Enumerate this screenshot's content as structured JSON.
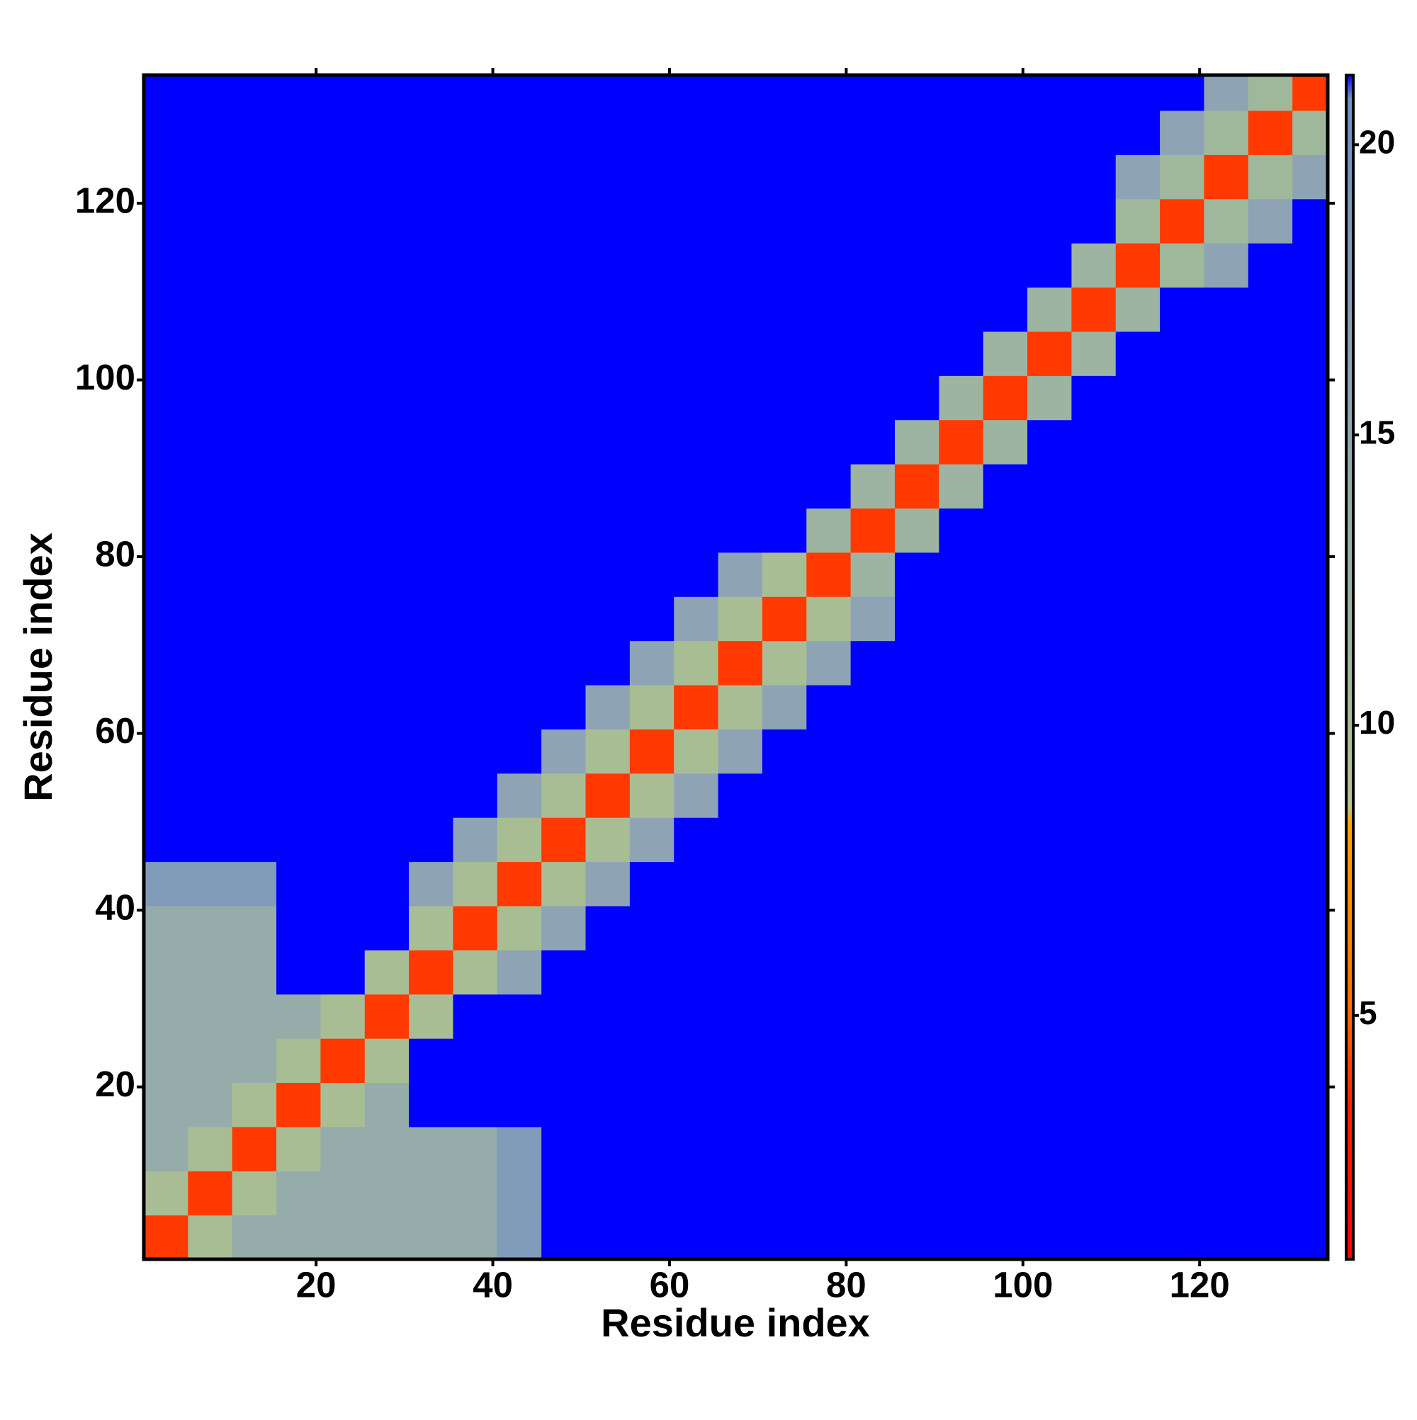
{
  "chart_data": {
    "type": "heatmap",
    "x_label": "Residue index",
    "y_label": "Residue index",
    "xlim": [
      0.5,
      134.5
    ],
    "ylim": [
      0.5,
      134.5
    ],
    "xticks": [
      20,
      40,
      60,
      80,
      100,
      120
    ],
    "yticks": [
      20,
      40,
      60,
      80,
      100,
      120
    ],
    "xbins": [
      0.5,
      5.5,
      10.5,
      15.5,
      20.5,
      25.5,
      30.5,
      35.5,
      40.5,
      45.5,
      50.5,
      55.5,
      60.5,
      65.5,
      70.5,
      75.5,
      80.5,
      85.5,
      90.5,
      95.5,
      100.5,
      105.5,
      110.5,
      115.5,
      120.5,
      125.5,
      130.5,
      134.5
    ],
    "ybins": [
      0.5,
      5.5,
      10.5,
      15.5,
      20.5,
      25.5,
      30.5,
      35.5,
      40.5,
      45.5,
      50.5,
      55.5,
      60.5,
      65.5,
      70.5,
      75.5,
      80.5,
      85.5,
      90.5,
      95.5,
      100.5,
      105.5,
      110.5,
      115.5,
      120.5,
      125.5,
      130.5,
      134.5
    ],
    "zlim": [
      0.8,
      21.2
    ],
    "zticks": [
      5,
      10,
      15,
      20
    ],
    "colorscale": [
      [
        0.8,
        "#ff0000"
      ],
      [
        3.5,
        "#ff2000"
      ],
      [
        5,
        "#ff6a00"
      ],
      [
        8.3,
        "#ffa500"
      ],
      [
        8.6,
        "#b8c48c"
      ],
      [
        11,
        "#9fb89c"
      ],
      [
        16,
        "#8ea4b4"
      ],
      [
        20.8,
        "#6e8fc4"
      ],
      [
        21.2,
        "#0000ff"
      ]
    ],
    "z": [
      [
        4,
        10,
        14,
        14,
        14,
        14,
        14,
        14,
        18,
        22,
        22,
        22,
        22,
        22,
        22,
        22,
        22,
        22,
        22,
        22,
        22,
        22,
        22,
        22,
        22,
        22,
        22
      ],
      [
        10,
        4,
        10,
        14,
        14,
        14,
        14,
        14,
        18,
        22,
        22,
        22,
        22,
        22,
        22,
        22,
        22,
        22,
        22,
        22,
        22,
        22,
        22,
        22,
        22,
        22,
        22
      ],
      [
        14,
        10,
        4,
        10,
        14,
        14,
        14,
        14,
        18,
        22,
        22,
        22,
        22,
        22,
        22,
        22,
        22,
        22,
        22,
        22,
        22,
        22,
        22,
        22,
        22,
        22,
        22
      ],
      [
        14,
        14,
        10,
        4,
        10,
        14,
        22,
        22,
        22,
        22,
        22,
        22,
        22,
        22,
        22,
        22,
        22,
        22,
        22,
        22,
        22,
        22,
        22,
        22,
        22,
        22,
        22
      ],
      [
        14,
        14,
        14,
        10,
        4,
        10,
        22,
        22,
        22,
        22,
        22,
        22,
        22,
        22,
        22,
        22,
        22,
        22,
        22,
        22,
        22,
        22,
        22,
        22,
        22,
        22,
        22
      ],
      [
        14,
        14,
        14,
        14,
        10,
        4,
        10,
        22,
        22,
        22,
        22,
        22,
        22,
        22,
        22,
        22,
        22,
        22,
        22,
        22,
        22,
        22,
        22,
        22,
        22,
        22,
        22
      ],
      [
        14,
        14,
        14,
        22,
        22,
        10,
        4,
        10,
        16,
        22,
        22,
        22,
        22,
        22,
        22,
        22,
        22,
        22,
        22,
        22,
        22,
        22,
        22,
        22,
        22,
        22,
        22
      ],
      [
        14,
        14,
        14,
        22,
        22,
        22,
        10,
        4,
        10,
        16,
        22,
        22,
        22,
        22,
        22,
        22,
        22,
        22,
        22,
        22,
        22,
        22,
        22,
        22,
        22,
        22,
        22
      ],
      [
        18,
        18,
        18,
        22,
        22,
        22,
        16,
        10,
        4,
        10,
        16,
        22,
        22,
        22,
        22,
        22,
        22,
        22,
        22,
        22,
        22,
        22,
        22,
        22,
        22,
        22,
        22
      ],
      [
        22,
        22,
        22,
        22,
        22,
        22,
        22,
        16,
        10,
        4,
        10,
        16,
        22,
        22,
        22,
        22,
        22,
        22,
        22,
        22,
        22,
        22,
        22,
        22,
        22,
        22,
        22
      ],
      [
        22,
        22,
        22,
        22,
        22,
        22,
        22,
        22,
        16,
        10,
        4,
        10,
        16,
        22,
        22,
        22,
        22,
        22,
        22,
        22,
        22,
        22,
        22,
        22,
        22,
        22,
        22
      ],
      [
        22,
        22,
        22,
        22,
        22,
        22,
        22,
        22,
        22,
        16,
        10,
        4,
        10,
        16,
        22,
        22,
        22,
        22,
        22,
        22,
        22,
        22,
        22,
        22,
        22,
        22,
        22
      ],
      [
        22,
        22,
        22,
        22,
        22,
        22,
        22,
        22,
        22,
        22,
        16,
        10,
        4,
        10,
        16,
        22,
        22,
        22,
        22,
        22,
        22,
        22,
        22,
        22,
        22,
        22,
        22
      ],
      [
        22,
        22,
        22,
        22,
        22,
        22,
        22,
        22,
        22,
        22,
        22,
        16,
        10,
        4,
        10,
        16,
        22,
        22,
        22,
        22,
        22,
        22,
        22,
        22,
        22,
        22,
        22
      ],
      [
        22,
        22,
        22,
        22,
        22,
        22,
        22,
        22,
        22,
        22,
        22,
        22,
        16,
        10,
        4,
        10,
        16,
        22,
        22,
        22,
        22,
        22,
        22,
        22,
        22,
        22,
        22
      ],
      [
        22,
        22,
        22,
        22,
        22,
        22,
        22,
        22,
        22,
        22,
        22,
        22,
        22,
        16,
        10,
        4,
        12,
        22,
        22,
        22,
        22,
        22,
        22,
        22,
        22,
        22,
        22
      ],
      [
        22,
        22,
        22,
        22,
        22,
        22,
        22,
        22,
        22,
        22,
        22,
        22,
        22,
        22,
        22,
        12,
        4,
        12,
        22,
        22,
        22,
        22,
        22,
        22,
        22,
        22,
        22
      ],
      [
        22,
        22,
        22,
        22,
        22,
        22,
        22,
        22,
        22,
        22,
        22,
        22,
        22,
        22,
        22,
        22,
        12,
        4,
        12,
        22,
        22,
        22,
        22,
        22,
        22,
        22,
        22
      ],
      [
        22,
        22,
        22,
        22,
        22,
        22,
        22,
        22,
        22,
        22,
        22,
        22,
        22,
        22,
        22,
        22,
        22,
        12,
        4,
        12,
        22,
        22,
        22,
        22,
        22,
        22,
        22
      ],
      [
        22,
        22,
        22,
        22,
        22,
        22,
        22,
        22,
        22,
        22,
        22,
        22,
        22,
        22,
        22,
        22,
        22,
        22,
        12,
        4,
        12,
        22,
        22,
        22,
        22,
        22,
        22
      ],
      [
        22,
        22,
        22,
        22,
        22,
        22,
        22,
        22,
        22,
        22,
        22,
        22,
        22,
        22,
        22,
        22,
        22,
        22,
        22,
        12,
        4,
        12,
        22,
        22,
        22,
        22,
        22
      ],
      [
        22,
        22,
        22,
        22,
        22,
        22,
        22,
        22,
        22,
        22,
        22,
        22,
        22,
        22,
        22,
        22,
        22,
        22,
        22,
        22,
        12,
        4,
        12,
        22,
        22,
        22,
        22
      ],
      [
        22,
        22,
        22,
        22,
        22,
        22,
        22,
        22,
        22,
        22,
        22,
        22,
        22,
        22,
        22,
        22,
        22,
        22,
        22,
        22,
        22,
        12,
        4,
        11,
        16,
        22,
        22
      ],
      [
        22,
        22,
        22,
        22,
        22,
        22,
        22,
        22,
        22,
        22,
        22,
        22,
        22,
        22,
        22,
        22,
        22,
        22,
        22,
        22,
        22,
        22,
        11,
        4,
        11,
        16,
        22
      ],
      [
        22,
        22,
        22,
        22,
        22,
        22,
        22,
        22,
        22,
        22,
        22,
        22,
        22,
        22,
        22,
        22,
        22,
        22,
        22,
        22,
        22,
        22,
        16,
        11,
        4,
        11,
        16
      ],
      [
        22,
        22,
        22,
        22,
        22,
        22,
        22,
        22,
        22,
        22,
        22,
        22,
        22,
        22,
        22,
        22,
        22,
        22,
        22,
        22,
        22,
        22,
        22,
        16,
        11,
        4,
        11
      ],
      [
        22,
        22,
        22,
        22,
        22,
        22,
        22,
        22,
        22,
        22,
        22,
        22,
        22,
        22,
        22,
        22,
        22,
        22,
        22,
        22,
        22,
        22,
        22,
        22,
        16,
        11,
        4
      ]
    ]
  }
}
